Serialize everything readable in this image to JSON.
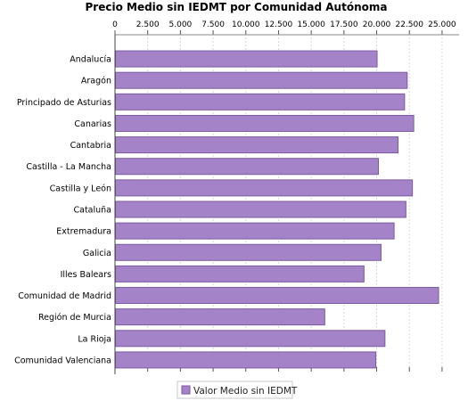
{
  "chart_data": {
    "type": "bar",
    "orientation": "horizontal",
    "title": "Precio Medio sin IEDMT por Comunidad Autónoma",
    "xlabel": "",
    "ylabel": "",
    "xlim": [
      0,
      26300
    ],
    "xticks": [
      "0",
      "2.500",
      "5.000",
      "7.500",
      "10.000",
      "12.500",
      "15.000",
      "17.500",
      "20.000",
      "22.500",
      "25.000"
    ],
    "tick_values": [
      0,
      2500,
      5000,
      7500,
      10000,
      12500,
      15000,
      17500,
      20000,
      22500,
      25000
    ],
    "grid": true,
    "legend_position": "bottom",
    "colors": {
      "bar_fill": "#a583c8",
      "bar_stroke": "#7b5aa0",
      "grid": "#d8d8d8"
    },
    "series": [
      {
        "name": "Valor Medio sin IEDMT",
        "values": [
          20000,
          22300,
          22100,
          22800,
          21600,
          20100,
          22700,
          22200,
          21300,
          20300,
          19000,
          24700,
          16000,
          20600,
          19900
        ]
      }
    ],
    "categories": [
      "Andalucía",
      "Aragón",
      "Principado de Asturias",
      "Canarias",
      "Cantabria",
      "Castilla - La Mancha",
      "Castilla y León",
      "Cataluña",
      "Extremadura",
      "Galicia",
      "Illes Balears",
      "Comunidad de Madrid",
      "Región de Murcia",
      "La Rioja",
      "Comunidad Valenciana"
    ]
  }
}
